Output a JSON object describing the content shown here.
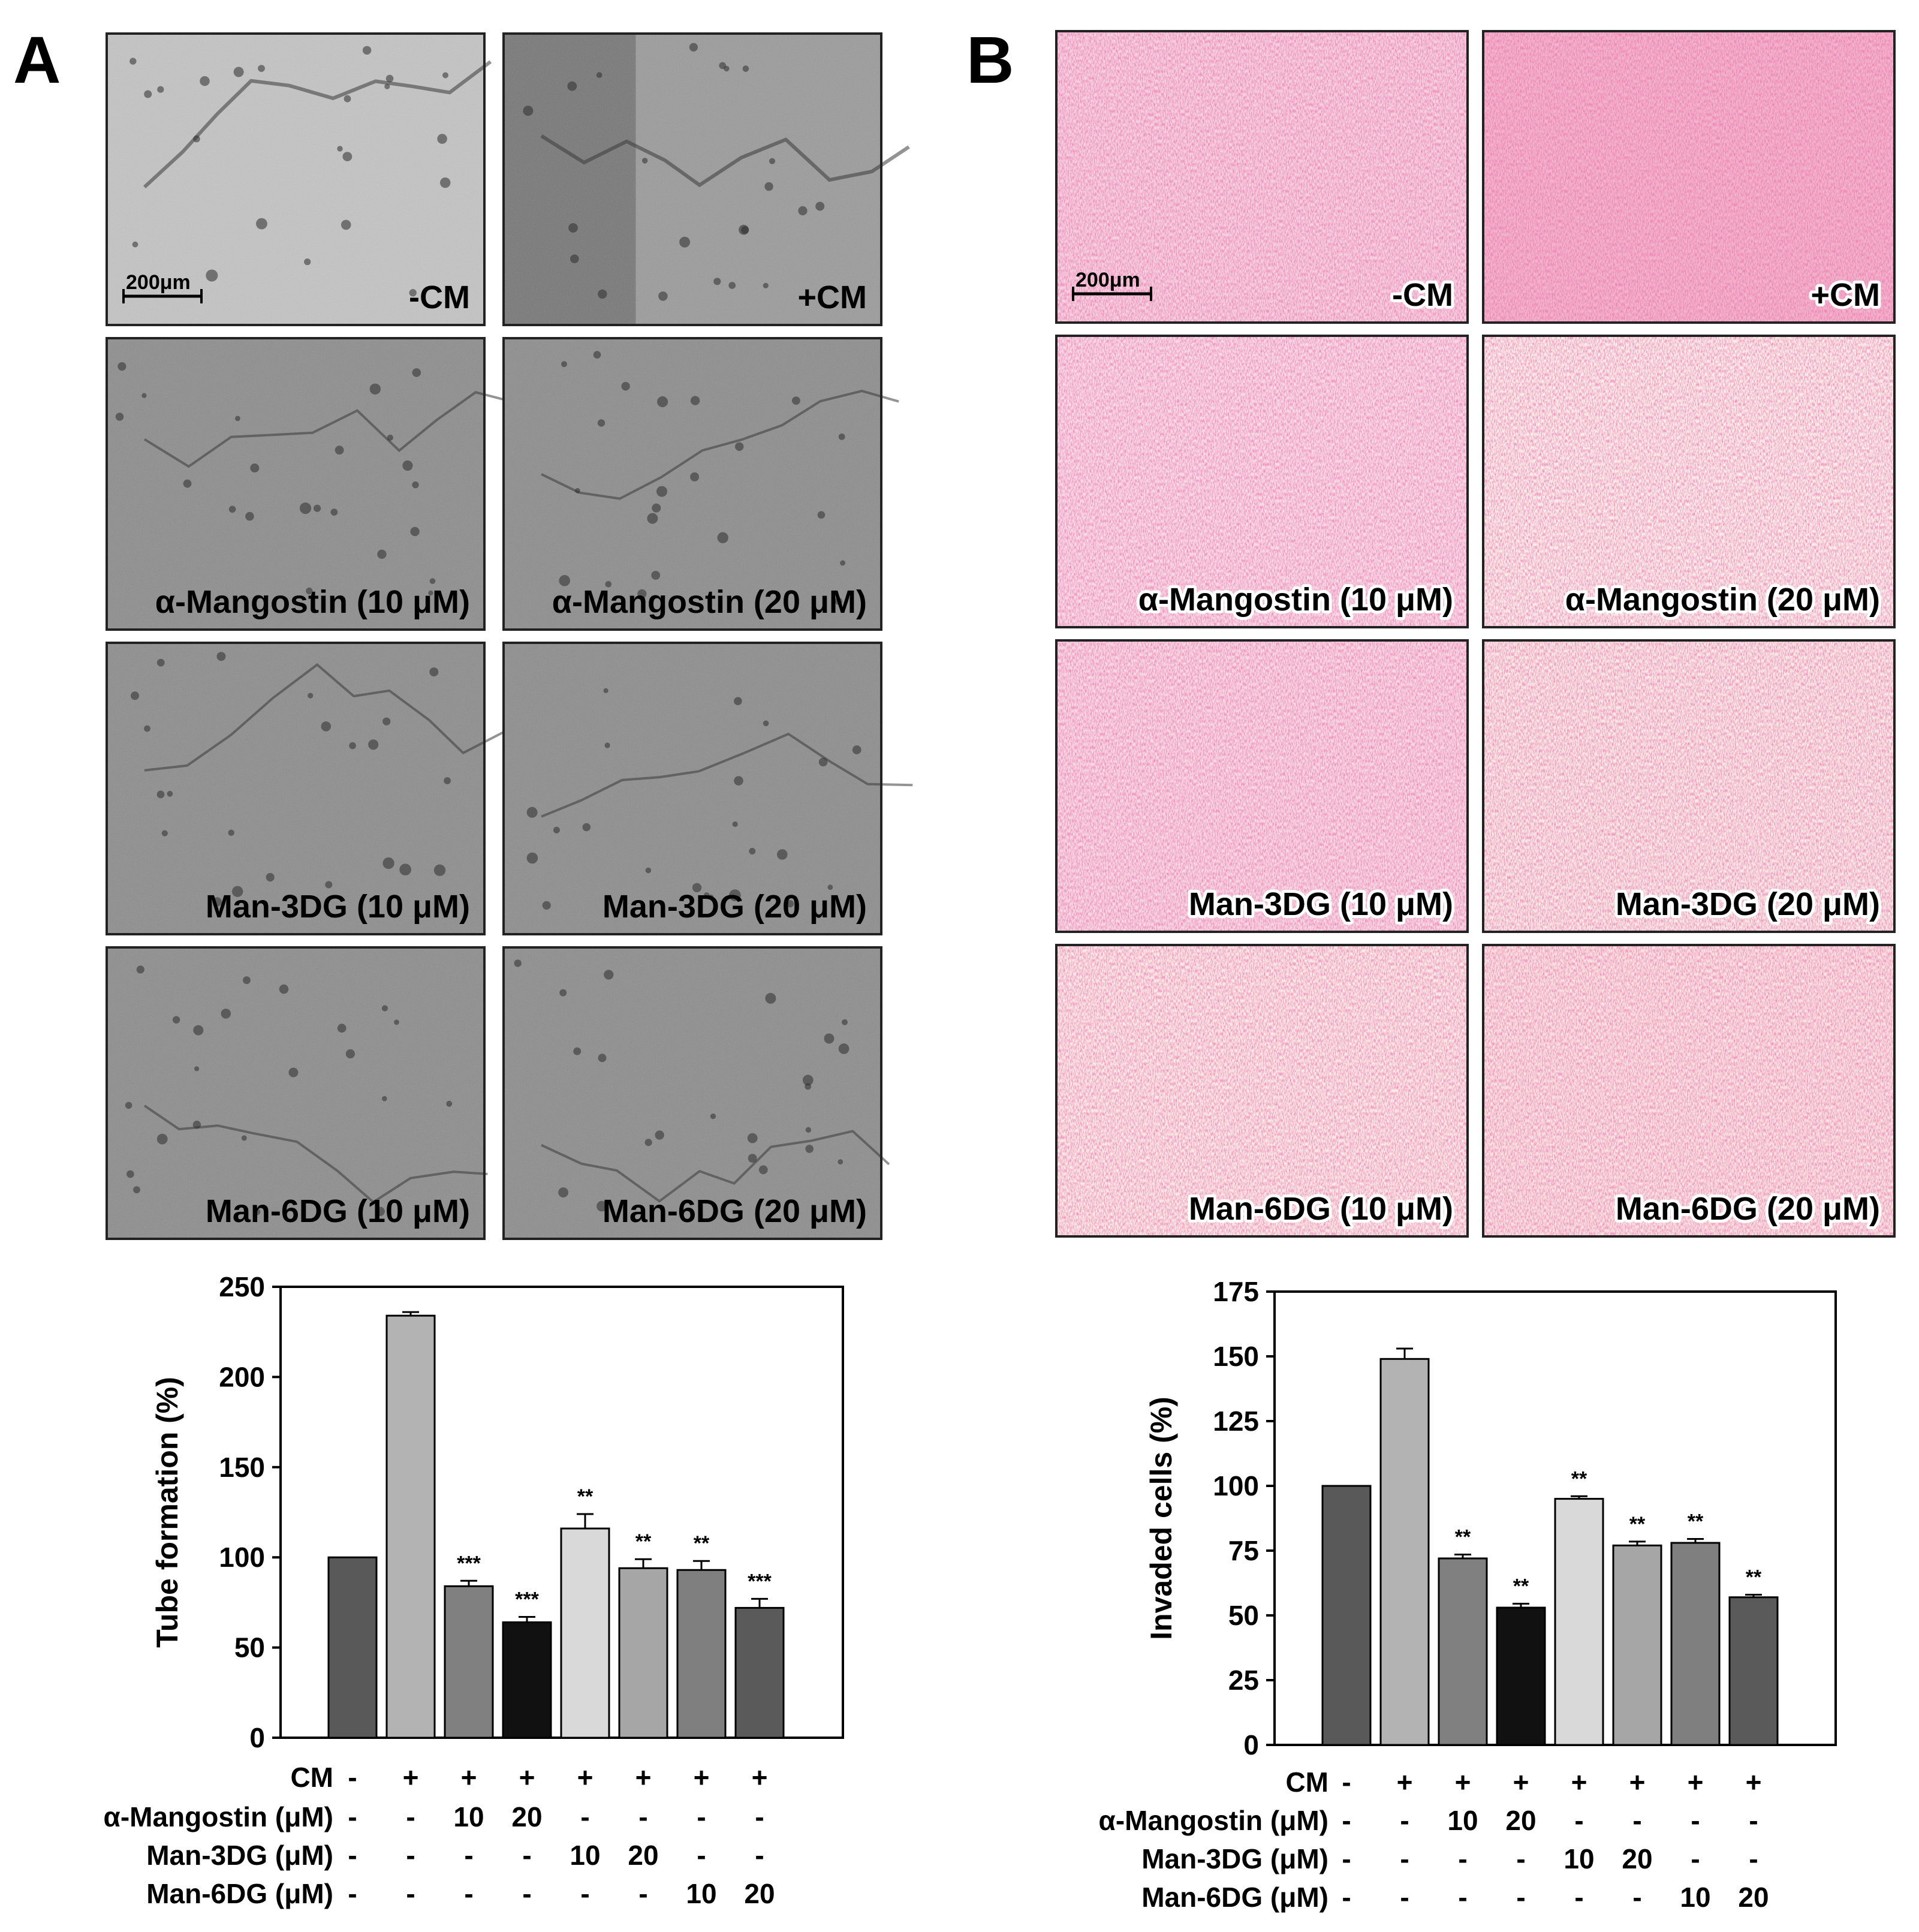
{
  "panels": {
    "A": {
      "letter": "A",
      "micrographs": {
        "scale_label": "200μm",
        "captions": [
          "-CM",
          "+CM",
          "α-Mangostin (10 μM)",
          "α-Mangostin (20 μM)",
          "Man-3DG (10 μM)",
          "Man-3DG (20 μM)",
          "Man-6DG (10 μM)",
          "Man-6DG (20 μM)"
        ]
      }
    },
    "B": {
      "letter": "B",
      "micrographs": {
        "scale_label": "200μm",
        "captions": [
          "-CM",
          "+CM",
          "α-Mangostin (10 μM)",
          "α-Mangostin (20 μM)",
          "Man-3DG (10 μM)",
          "Man-3DG (20 μM)",
          "Man-6DG (10 μM)",
          "Man-6DG (20 μM)"
        ]
      }
    }
  },
  "treatment_table": {
    "rows": [
      {
        "label": "CM",
        "cells": [
          "-",
          "+",
          "+",
          "+",
          "+",
          "+",
          "+",
          "+"
        ]
      },
      {
        "label": "α-Mangostin (μM)",
        "cells": [
          "-",
          "-",
          "10",
          "20",
          "-",
          "-",
          "-",
          "-"
        ]
      },
      {
        "label": "Man-3DG (μM)",
        "cells": [
          "-",
          "-",
          "-",
          "-",
          "10",
          "20",
          "-",
          "-"
        ]
      },
      {
        "label": "Man-6DG (μM)",
        "cells": [
          "-",
          "-",
          "-",
          "-",
          "-",
          "-",
          "10",
          "20"
        ]
      }
    ]
  },
  "chart_data": [
    {
      "type": "bar",
      "panel": "A",
      "ylabel": "Tube formation (%)",
      "ylim": [
        0,
        250
      ],
      "yticks": [
        0,
        50,
        100,
        150,
        200,
        250
      ],
      "values": [
        100,
        234,
        84,
        64,
        116,
        94,
        93,
        72
      ],
      "errors": [
        0,
        2,
        3,
        3,
        8,
        5,
        5,
        5
      ],
      "significance": [
        "",
        "",
        "***",
        "***",
        "**",
        "**",
        "**",
        "***"
      ],
      "bar_colors": [
        "#595959",
        "#b3b3b3",
        "#808080",
        "#111111",
        "#d9d9d9",
        "#a6a6a6",
        "#7f7f7f",
        "#5a5a5a"
      ],
      "grid": false,
      "legend": "none"
    },
    {
      "type": "bar",
      "panel": "B",
      "ylabel": "Invaded cells (%)",
      "ylim": [
        0,
        175
      ],
      "yticks": [
        0,
        25,
        50,
        75,
        100,
        125,
        150,
        175
      ],
      "values": [
        100,
        149,
        72,
        53,
        95,
        77,
        78,
        57
      ],
      "errors": [
        0,
        4,
        1.5,
        1.5,
        1,
        1.5,
        1.5,
        1
      ],
      "significance": [
        "",
        "",
        "**",
        "**",
        "**",
        "**",
        "**",
        "**"
      ],
      "bar_colors": [
        "#595959",
        "#b3b3b3",
        "#808080",
        "#111111",
        "#d9d9d9",
        "#a6a6a6",
        "#7f7f7f",
        "#5a5a5a"
      ],
      "grid": false,
      "legend": "none"
    }
  ]
}
